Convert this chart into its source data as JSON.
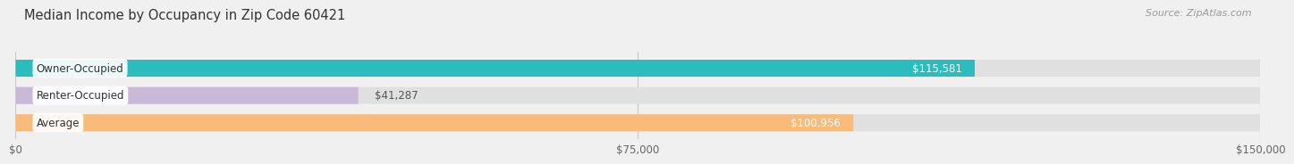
{
  "title": "Median Income by Occupancy in Zip Code 60421",
  "source": "Source: ZipAtlas.com",
  "categories": [
    "Owner-Occupied",
    "Renter-Occupied",
    "Average"
  ],
  "values": [
    115581,
    41287,
    100956
  ],
  "bar_colors": [
    "#2bbcbe",
    "#c9b8d8",
    "#f9bb7a"
  ],
  "value_labels": [
    "$115,581",
    "$41,287",
    "$100,956"
  ],
  "xlim": [
    0,
    150000
  ],
  "xticks": [
    0,
    75000,
    150000
  ],
  "xtick_labels": [
    "$0",
    "$75,000",
    "$150,000"
  ],
  "bar_height": 0.62,
  "background_color": "#f0f0f0",
  "bar_bg_color": "#e0e0e0",
  "title_fontsize": 10.5,
  "source_fontsize": 8,
  "label_fontsize": 8.5,
  "value_fontsize": 8.5,
  "tick_fontsize": 8.5,
  "label_text_color": "#333333",
  "value_color_inside": "#ffffff",
  "value_color_outside": "#555555"
}
